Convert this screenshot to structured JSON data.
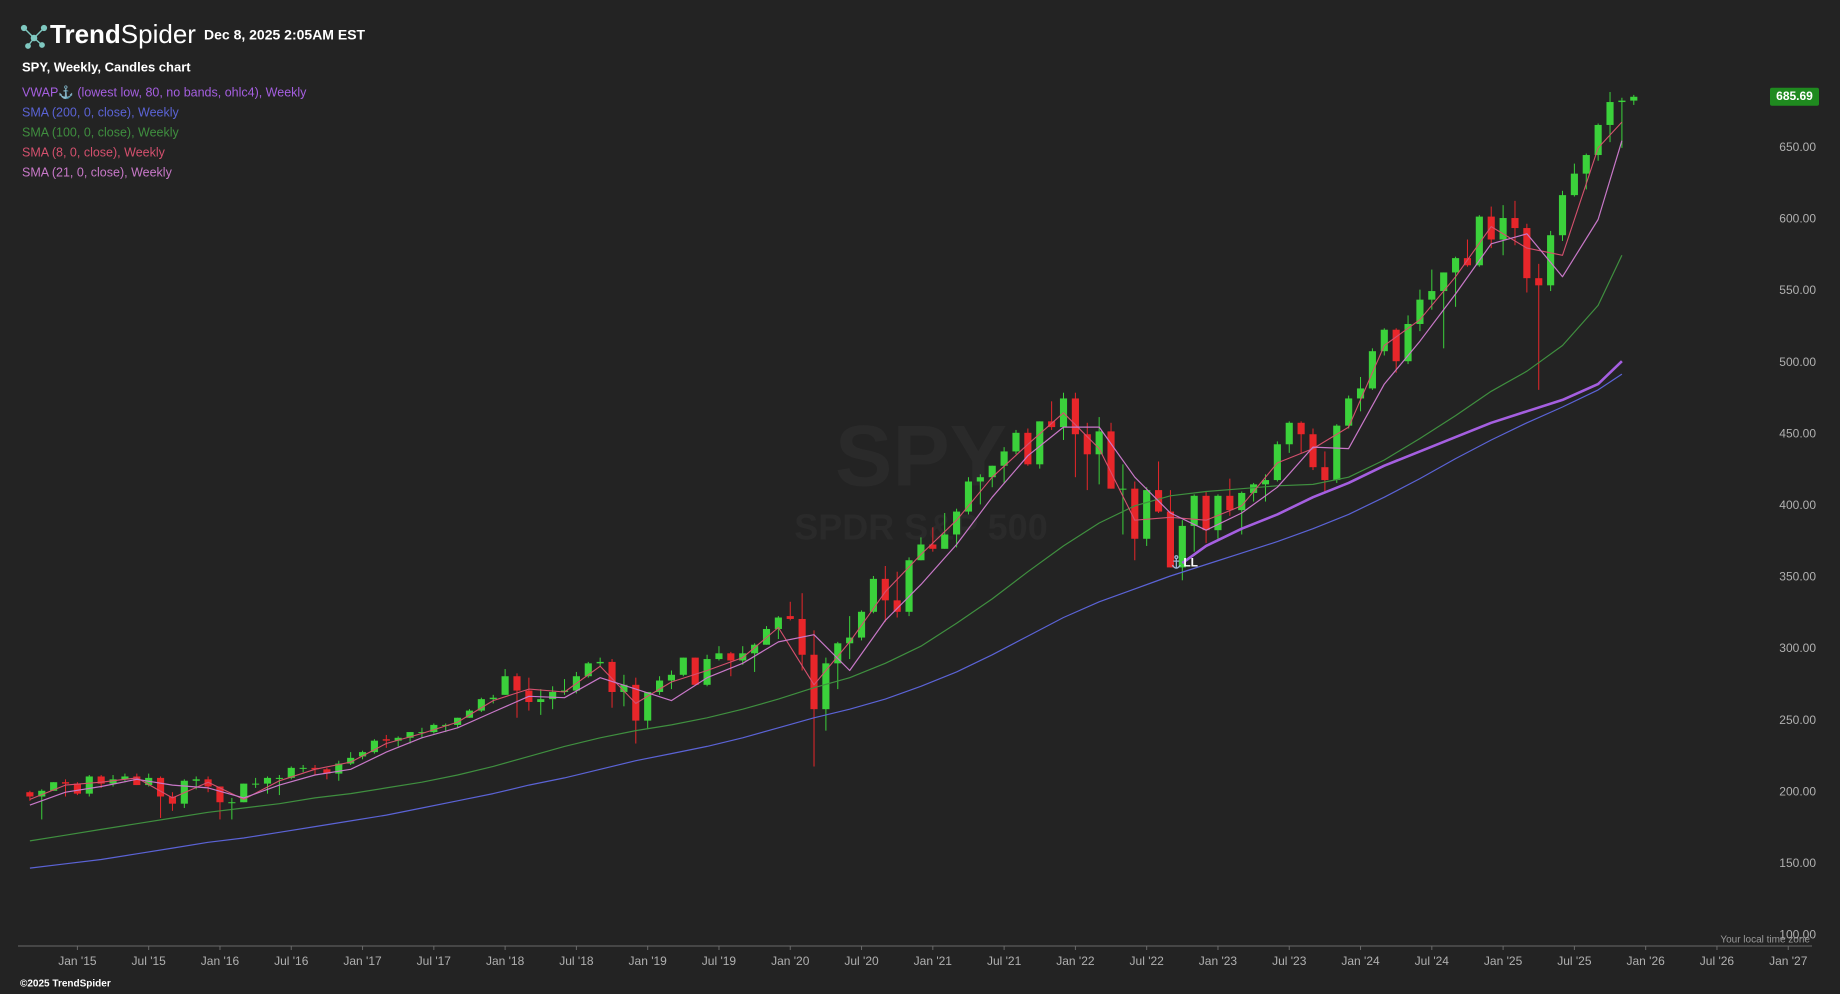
{
  "header": {
    "logo": [
      "Trend",
      "Spider"
    ],
    "datetime": "Dec 8, 2025 2:05AM EST"
  },
  "footer": {
    "copyright": "©2025 TrendSpider",
    "timezone_note": "Your local time zone"
  },
  "chart_data": {
    "type": "candlestick",
    "title": "SPY, Weekly, Candles chart",
    "watermark": [
      "SPY",
      "SPDR S&P 500"
    ],
    "up_color": "#3bd13b",
    "down_color": "#e8262a",
    "x": [
      "2014-09",
      "2014-10",
      "2014-11",
      "2014-12",
      "2015-01",
      "2015-02",
      "2015-03",
      "2015-04",
      "2015-05",
      "2015-06",
      "2015-07",
      "2015-08",
      "2015-09",
      "2015-10",
      "2015-11",
      "2015-12",
      "2016-01",
      "2016-02",
      "2016-03",
      "2016-04",
      "2016-05",
      "2016-06",
      "2016-07",
      "2016-08",
      "2016-09",
      "2016-10",
      "2016-11",
      "2016-12",
      "2017-01",
      "2017-02",
      "2017-03",
      "2017-04",
      "2017-05",
      "2017-06",
      "2017-07",
      "2017-08",
      "2017-09",
      "2017-10",
      "2017-11",
      "2017-12",
      "2018-01",
      "2018-02",
      "2018-03",
      "2018-04",
      "2018-05",
      "2018-06",
      "2018-07",
      "2018-08",
      "2018-09",
      "2018-10",
      "2018-11",
      "2018-12",
      "2019-01",
      "2019-02",
      "2019-03",
      "2019-04",
      "2019-05",
      "2019-06",
      "2019-07",
      "2019-08",
      "2019-09",
      "2019-10",
      "2019-11",
      "2019-12",
      "2020-01",
      "2020-02",
      "2020-03",
      "2020-04",
      "2020-05",
      "2020-06",
      "2020-07",
      "2020-08",
      "2020-09",
      "2020-10",
      "2020-11",
      "2020-12",
      "2021-01",
      "2021-02",
      "2021-03",
      "2021-04",
      "2021-05",
      "2021-06",
      "2021-07",
      "2021-08",
      "2021-09",
      "2021-10",
      "2021-11",
      "2021-12",
      "2022-01",
      "2022-02",
      "2022-03",
      "2022-04",
      "2022-05",
      "2022-06",
      "2022-07",
      "2022-08",
      "2022-09",
      "2022-10",
      "2022-11",
      "2022-12",
      "2023-01",
      "2023-02",
      "2023-03",
      "2023-04",
      "2023-05",
      "2023-06",
      "2023-07",
      "2023-08",
      "2023-09",
      "2023-10",
      "2023-11",
      "2023-12",
      "2024-01",
      "2024-02",
      "2024-03",
      "2024-04",
      "2024-05",
      "2024-06",
      "2024-07",
      "2024-08",
      "2024-09",
      "2024-10",
      "2024-11",
      "2024-12",
      "2025-01",
      "2025-02",
      "2025-03",
      "2025-04",
      "2025-05",
      "2025-06",
      "2025-07",
      "2025-08",
      "2025-09",
      "2025-10",
      "2025-11",
      "2025-12"
    ],
    "open": [
      200,
      197,
      201,
      207,
      206,
      199,
      211,
      206,
      209,
      211,
      205,
      210,
      197,
      192,
      208,
      209,
      204,
      193,
      193,
      206,
      206,
      210,
      210,
      217,
      217,
      216,
      213,
      220,
      225,
      228,
      237,
      236,
      238,
      242,
      242,
      247,
      247,
      252,
      257,
      265,
      268,
      281,
      271,
      263,
      265,
      270,
      271,
      281,
      290,
      291,
      270,
      275,
      250,
      270,
      278,
      282,
      294,
      275,
      293,
      297,
      292,
      297,
      303,
      314,
      323,
      321,
      296,
      258,
      290,
      304,
      308,
      326,
      349,
      334,
      326,
      362,
      373,
      370,
      380,
      396,
      417,
      420,
      428,
      438,
      451,
      429,
      459,
      455,
      475,
      450,
      436,
      452,
      412,
      412,
      377,
      411,
      396,
      357,
      386,
      407,
      383,
      407,
      397,
      409,
      415,
      418,
      443,
      458,
      450,
      427,
      418,
      456,
      475,
      482,
      508,
      523,
      501,
      527,
      544,
      550,
      563,
      573,
      568,
      602,
      586,
      601,
      594,
      559,
      554,
      589,
      617,
      632,
      645,
      666,
      682,
      683
    ],
    "high": [
      201,
      202,
      207,
      209,
      207,
      212,
      212,
      212,
      213,
      213,
      213,
      211,
      200,
      209,
      211,
      211,
      204,
      196,
      206,
      210,
      211,
      212,
      218,
      219,
      219,
      217,
      222,
      228,
      229,
      237,
      240,
      239,
      242,
      245,
      248,
      248,
      252,
      258,
      266,
      268,
      286,
      283,
      280,
      272,
      274,
      279,
      284,
      291,
      294,
      293,
      282,
      280,
      270,
      281,
      285,
      294,
      294,
      296,
      302,
      298,
      302,
      304,
      316,
      323,
      333,
      339,
      313,
      294,
      305,
      323,
      327,
      351,
      358,
      354,
      364,
      378,
      385,
      395,
      398,
      420,
      422,
      428,
      441,
      453,
      454,
      459,
      473,
      479,
      479,
      458,
      462,
      458,
      429,
      417,
      413,
      431,
      411,
      390,
      408,
      410,
      408,
      419,
      410,
      416,
      422,
      445,
      459,
      459,
      454,
      438,
      457,
      477,
      490,
      510,
      524,
      524,
      533,
      551,
      565,
      563,
      574,
      586,
      603,
      609,
      610,
      613,
      597,
      569,
      592,
      620,
      639,
      646,
      667,
      689,
      685,
      687
    ],
    "low": [
      194,
      181,
      201,
      197,
      198,
      197,
      203,
      204,
      207,
      205,
      204,
      182,
      187,
      189,
      202,
      200,
      181,
      181,
      193,
      203,
      199,
      198,
      209,
      214,
      212,
      209,
      208,
      219,
      223,
      227,
      231,
      232,
      234,
      238,
      241,
      242,
      245,
      252,
      256,
      262,
      268,
      252,
      257,
      254,
      258,
      268,
      269,
      280,
      288,
      259,
      260,
      234,
      244,
      268,
      272,
      281,
      275,
      274,
      292,
      281,
      289,
      284,
      303,
      307,
      320,
      285,
      218,
      243,
      272,
      293,
      306,
      325,
      319,
      322,
      323,
      362,
      368,
      370,
      371,
      394,
      401,
      413,
      416,
      436,
      428,
      426,
      453,
      446,
      420,
      411,
      415,
      412,
      380,
      362,
      372,
      395,
      357,
      348,
      368,
      374,
      377,
      393,
      380,
      403,
      403,
      417,
      437,
      437,
      425,
      410,
      416,
      454,
      466,
      481,
      505,
      493,
      499,
      522,
      537,
      510,
      539,
      567,
      567,
      580,
      575,
      582,
      549,
      481,
      550,
      585,
      616,
      621,
      641,
      654,
      650,
      680
    ],
    "close": [
      197,
      201,
      207,
      206,
      199,
      211,
      206,
      209,
      211,
      205,
      210,
      197,
      192,
      208,
      209,
      204,
      193,
      193,
      206,
      206,
      210,
      210,
      217,
      217,
      216,
      213,
      220,
      224,
      228,
      236,
      236,
      238,
      242,
      242,
      247,
      247,
      252,
      257,
      265,
      266,
      281,
      271,
      263,
      265,
      270,
      271,
      281,
      290,
      291,
      270,
      275,
      250,
      270,
      278,
      282,
      294,
      275,
      293,
      297,
      292,
      297,
      303,
      314,
      322,
      321,
      296,
      258,
      290,
      304,
      308,
      326,
      349,
      334,
      326,
      362,
      373,
      370,
      380,
      396,
      417,
      420,
      428,
      438,
      451,
      429,
      459,
      455,
      475,
      450,
      436,
      452,
      412,
      412,
      377,
      411,
      396,
      357,
      386,
      407,
      383,
      407,
      397,
      409,
      415,
      418,
      443,
      458,
      450,
      427,
      418,
      456,
      475,
      482,
      508,
      523,
      501,
      527,
      544,
      550,
      563,
      573,
      568,
      602,
      586,
      601,
      594,
      559,
      554,
      589,
      617,
      632,
      645,
      666,
      682,
      683,
      685.69
    ],
    "lines": [
      {
        "name": "VWAP⚓ (lowest low, 80, no bands, ohlc4), Weekly",
        "color": "#a55fe0",
        "width": 2.6,
        "x": [
          "2022-10",
          "2022-12",
          "2023-03",
          "2023-06",
          "2023-09",
          "2023-12",
          "2024-03",
          "2024-06",
          "2024-09",
          "2024-12",
          "2025-03",
          "2025-06",
          "2025-09",
          "2025-11"
        ],
        "values": [
          360,
          372,
          384,
          394,
          406,
          416,
          428,
          438,
          448,
          458,
          466,
          474,
          485,
          501
        ]
      },
      {
        "name": "SMA (200, 0, close), Weekly",
        "color": "#5b63d6",
        "width": 1.2,
        "x": [
          "2014-09",
          "2014-12",
          "2015-03",
          "2015-06",
          "2015-09",
          "2015-12",
          "2016-03",
          "2016-06",
          "2016-09",
          "2016-12",
          "2017-03",
          "2017-06",
          "2017-09",
          "2017-12",
          "2018-03",
          "2018-06",
          "2018-09",
          "2018-12",
          "2019-03",
          "2019-06",
          "2019-09",
          "2019-12",
          "2020-03",
          "2020-06",
          "2020-09",
          "2020-12",
          "2021-03",
          "2021-06",
          "2021-09",
          "2021-12",
          "2022-03",
          "2022-06",
          "2022-09",
          "2022-12",
          "2023-03",
          "2023-06",
          "2023-09",
          "2023-12",
          "2024-03",
          "2024-06",
          "2024-09",
          "2024-12",
          "2025-03",
          "2025-06",
          "2025-09",
          "2025-11"
        ],
        "values": [
          147,
          150,
          153,
          157,
          161,
          165,
          168,
          172,
          176,
          180,
          184,
          189,
          194,
          199,
          205,
          210,
          216,
          222,
          227,
          232,
          238,
          245,
          252,
          258,
          265,
          274,
          284,
          296,
          309,
          322,
          333,
          342,
          351,
          359,
          367,
          375,
          384,
          394,
          406,
          419,
          433,
          446,
          458,
          469,
          481,
          492
        ]
      },
      {
        "name": "SMA (100, 0, close), Weekly",
        "color": "#3f8f3f",
        "width": 1.2,
        "x": [
          "2014-09",
          "2014-12",
          "2015-03",
          "2015-06",
          "2015-09",
          "2015-12",
          "2016-03",
          "2016-06",
          "2016-09",
          "2016-12",
          "2017-03",
          "2017-06",
          "2017-09",
          "2017-12",
          "2018-03",
          "2018-06",
          "2018-09",
          "2018-12",
          "2019-03",
          "2019-06",
          "2019-09",
          "2019-12",
          "2020-03",
          "2020-06",
          "2020-09",
          "2020-12",
          "2021-03",
          "2021-06",
          "2021-09",
          "2021-12",
          "2022-03",
          "2022-06",
          "2022-09",
          "2022-12",
          "2023-03",
          "2023-06",
          "2023-09",
          "2023-12",
          "2024-03",
          "2024-06",
          "2024-09",
          "2024-12",
          "2025-03",
          "2025-06",
          "2025-09",
          "2025-11"
        ],
        "values": [
          166,
          170,
          174,
          178,
          182,
          186,
          189,
          192,
          196,
          199,
          203,
          207,
          212,
          218,
          225,
          232,
          238,
          243,
          247,
          252,
          258,
          265,
          273,
          280,
          290,
          302,
          318,
          335,
          354,
          372,
          388,
          400,
          407,
          410,
          412,
          414,
          415,
          420,
          432,
          447,
          463,
          480,
          494,
          512,
          540,
          575
        ]
      },
      {
        "name": "SMA (8, 0, close), Weekly",
        "color": "#d4506e",
        "width": 1.1,
        "x": [
          "2014-09",
          "2014-12",
          "2015-03",
          "2015-06",
          "2015-09",
          "2015-12",
          "2016-03",
          "2016-06",
          "2016-09",
          "2016-12",
          "2017-03",
          "2017-06",
          "2017-09",
          "2017-12",
          "2018-03",
          "2018-06",
          "2018-09",
          "2018-12",
          "2019-03",
          "2019-06",
          "2019-09",
          "2019-12",
          "2020-03",
          "2020-06",
          "2020-09",
          "2020-12",
          "2021-03",
          "2021-06",
          "2021-09",
          "2021-12",
          "2022-03",
          "2022-06",
          "2022-09",
          "2022-12",
          "2023-03",
          "2023-06",
          "2023-09",
          "2023-12",
          "2024-03",
          "2024-06",
          "2024-09",
          "2024-12",
          "2025-03",
          "2025-06",
          "2025-09",
          "2025-11"
        ],
        "values": [
          195,
          205,
          207,
          210,
          196,
          207,
          195,
          208,
          216,
          221,
          234,
          241,
          249,
          264,
          272,
          270,
          288,
          262,
          277,
          285,
          294,
          315,
          275,
          305,
          340,
          366,
          390,
          420,
          443,
          465,
          440,
          390,
          392,
          390,
          400,
          430,
          440,
          455,
          512,
          530,
          560,
          595,
          580,
          575,
          650,
          668
        ]
      },
      {
        "name": "SMA (21, 0, close), Weekly",
        "color": "#c878c8",
        "width": 1.2,
        "x": [
          "2014-09",
          "2014-12",
          "2015-03",
          "2015-06",
          "2015-09",
          "2015-12",
          "2016-03",
          "2016-06",
          "2016-09",
          "2016-12",
          "2017-03",
          "2017-06",
          "2017-09",
          "2017-12",
          "2018-03",
          "2018-06",
          "2018-09",
          "2018-12",
          "2019-03",
          "2019-06",
          "2019-09",
          "2019-12",
          "2020-03",
          "2020-06",
          "2020-09",
          "2020-12",
          "2021-03",
          "2021-06",
          "2021-09",
          "2021-12",
          "2022-03",
          "2022-06",
          "2022-09",
          "2022-12",
          "2023-03",
          "2023-06",
          "2023-09",
          "2023-12",
          "2024-03",
          "2024-06",
          "2024-09",
          "2024-12",
          "2025-03",
          "2025-06",
          "2025-09",
          "2025-11"
        ],
        "values": [
          191,
          200,
          204,
          209,
          205,
          203,
          196,
          205,
          212,
          216,
          228,
          238,
          245,
          256,
          267,
          266,
          280,
          272,
          264,
          280,
          290,
          305,
          310,
          285,
          320,
          345,
          373,
          406,
          435,
          455,
          455,
          420,
          395,
          383,
          395,
          413,
          441,
          440,
          485,
          515,
          548,
          583,
          590,
          560,
          600,
          655
        ]
      }
    ],
    "annotation": "LL",
    "last_price_color": "#1f8a1f",
    "xlim": [
      "2014-08",
      "2027-03"
    ],
    "xticks": [
      {
        "value": "2015-01",
        "label": "Jan '15"
      },
      {
        "value": "2015-07",
        "label": "Jul '15"
      },
      {
        "value": "2016-01",
        "label": "Jan '16"
      },
      {
        "value": "2016-07",
        "label": "Jul '16"
      },
      {
        "value": "2017-01",
        "label": "Jan '17"
      },
      {
        "value": "2017-07",
        "label": "Jul '17"
      },
      {
        "value": "2018-01",
        "label": "Jan '18"
      },
      {
        "value": "2018-07",
        "label": "Jul '18"
      },
      {
        "value": "2019-01",
        "label": "Jan '19"
      },
      {
        "value": "2019-07",
        "label": "Jul '19"
      },
      {
        "value": "2020-01",
        "label": "Jan '20"
      },
      {
        "value": "2020-07",
        "label": "Jul '20"
      },
      {
        "value": "2021-01",
        "label": "Jan '21"
      },
      {
        "value": "2021-07",
        "label": "Jul '21"
      },
      {
        "value": "2022-01",
        "label": "Jan '22"
      },
      {
        "value": "2022-07",
        "label": "Jul '22"
      },
      {
        "value": "2023-01",
        "label": "Jan '23"
      },
      {
        "value": "2023-07",
        "label": "Jul '23"
      },
      {
        "value": "2024-01",
        "label": "Jan '24"
      },
      {
        "value": "2024-07",
        "label": "Jul '24"
      },
      {
        "value": "2025-01",
        "label": "Jan '25"
      },
      {
        "value": "2025-07",
        "label": "Jul '25"
      },
      {
        "value": "2026-01",
        "label": "Jan '26"
      },
      {
        "value": "2026-07",
        "label": "Jul '26"
      },
      {
        "value": "2027-01",
        "label": "Jan '27"
      }
    ],
    "ylim": [
      92.6,
      696
    ],
    "yticks": [
      {
        "value": 100,
        "label": "100.00"
      },
      {
        "value": 150,
        "label": "150.00"
      },
      {
        "value": 200,
        "label": "200.00"
      },
      {
        "value": 250,
        "label": "250.00"
      },
      {
        "value": 300,
        "label": "300.00"
      },
      {
        "value": 350,
        "label": "350.00"
      },
      {
        "value": 400,
        "label": "400.00"
      },
      {
        "value": 450,
        "label": "450.00"
      },
      {
        "value": 500,
        "label": "500.00"
      },
      {
        "value": 550,
        "label": "550.00"
      },
      {
        "value": 600,
        "label": "600.00"
      },
      {
        "value": 650,
        "label": "650.00"
      }
    ],
    "grid": false
  }
}
